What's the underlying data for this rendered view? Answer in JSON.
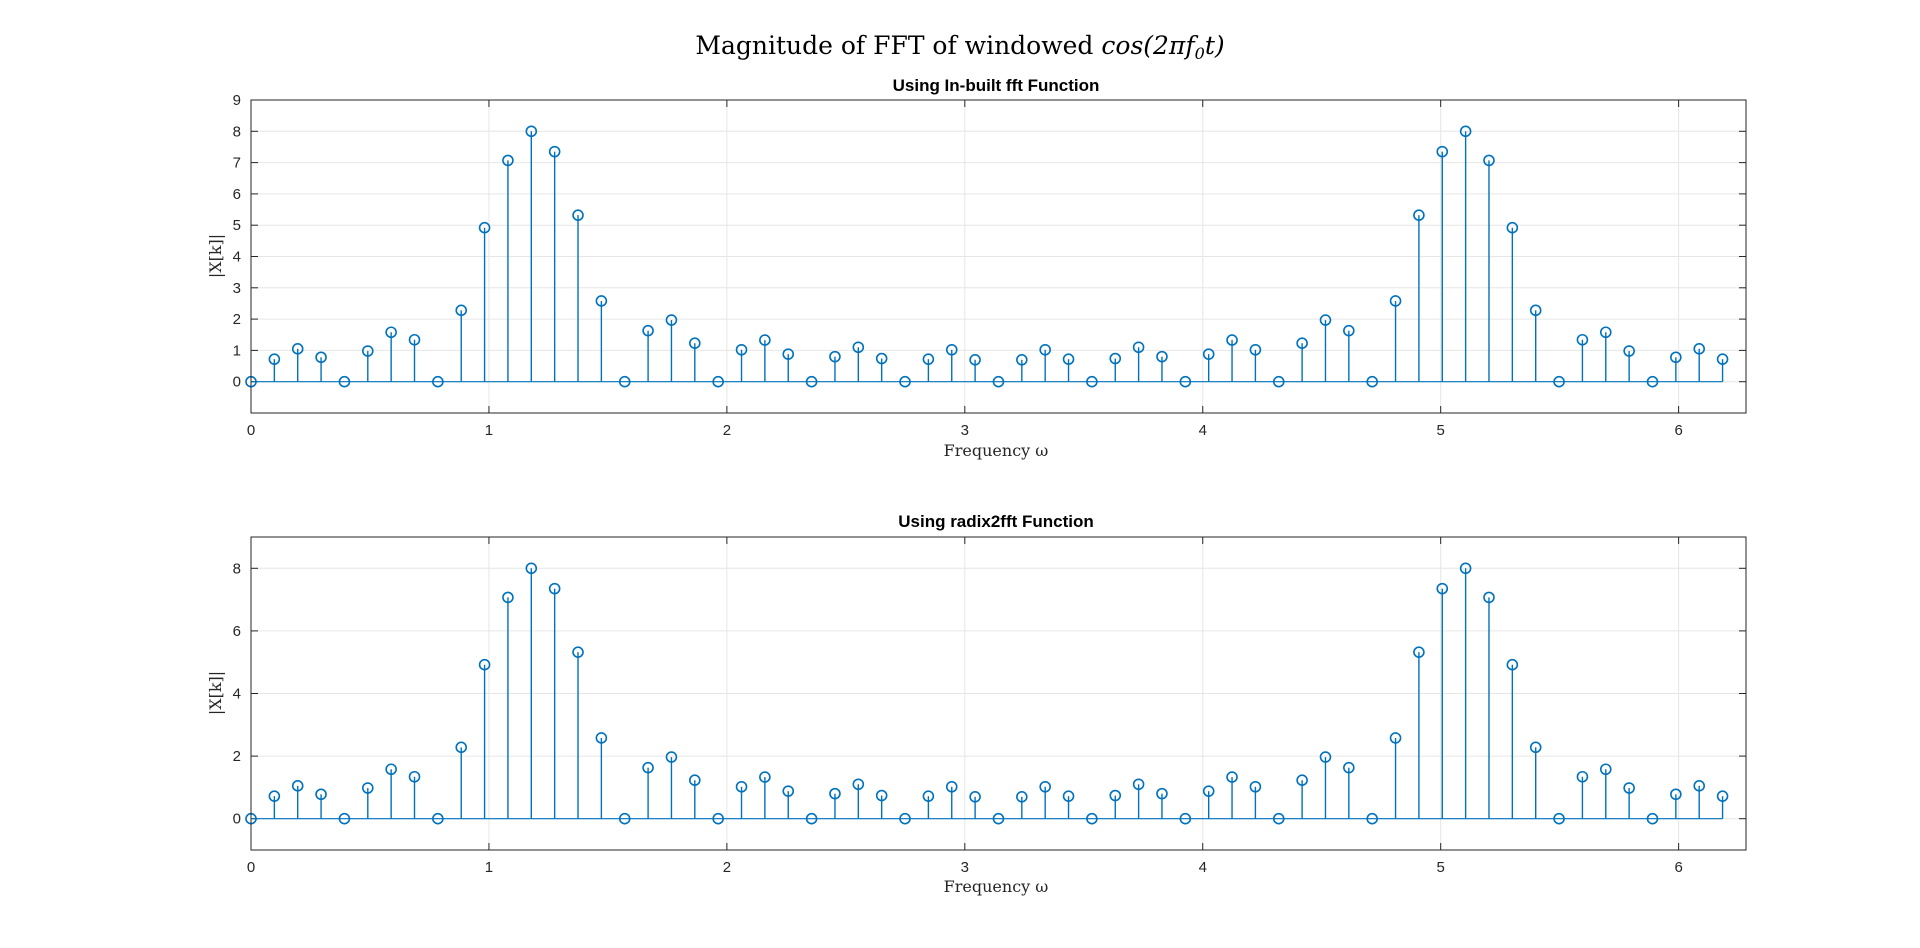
{
  "figure": {
    "title_prefix": "Magnitude of FFT of windowed ",
    "title_math": "cos(2πf",
    "title_sub": "0",
    "title_math_end": "t)"
  },
  "colors": {
    "stem": "#0072BD",
    "grid": "#e6e6e6",
    "axis": "#262626"
  },
  "chart_data": [
    {
      "type": "stem",
      "title": "Using In-built fft Function",
      "xlabel": "Frequency ω",
      "ylabel": "|X[k]|",
      "xlim": [
        0,
        6.2832
      ],
      "ylim": [
        -1,
        9
      ],
      "xticks": [
        0,
        1,
        2,
        3,
        4,
        5,
        6
      ],
      "yticks": [
        0,
        1,
        2,
        3,
        4,
        5,
        6,
        7,
        8,
        9
      ],
      "grid": true,
      "x_step": 0.09817,
      "values": [
        0,
        0.72,
        1.05,
        0.78,
        0,
        0.98,
        1.58,
        1.34,
        0,
        2.28,
        4.92,
        7.07,
        8.0,
        7.35,
        5.32,
        2.58,
        0,
        1.63,
        1.97,
        1.23,
        0,
        1.02,
        1.33,
        0.88,
        0,
        0.8,
        1.1,
        0.74,
        0,
        0.72,
        1.02,
        0.7,
        0,
        0.7,
        1.02,
        0.72,
        0,
        0.74,
        1.1,
        0.8,
        0,
        0.88,
        1.33,
        1.02,
        0,
        1.23,
        1.97,
        1.63,
        0,
        2.58,
        5.32,
        7.35,
        8.0,
        7.07,
        4.92,
        2.28,
        0,
        1.34,
        1.58,
        0.98,
        0,
        0.78,
        1.05,
        0.72
      ]
    },
    {
      "type": "stem",
      "title": "Using radix2fft Function",
      "xlabel": "Frequency ω",
      "ylabel": "|X[k]|",
      "xlim": [
        0,
        6.2832
      ],
      "ylim": [
        -1,
        9
      ],
      "xticks": [
        0,
        1,
        2,
        3,
        4,
        5,
        6
      ],
      "yticks": [
        0,
        2,
        4,
        6,
        8
      ],
      "grid": true,
      "x_step": 0.09817,
      "values": [
        0,
        0.72,
        1.05,
        0.78,
        0,
        0.98,
        1.58,
        1.34,
        0,
        2.28,
        4.92,
        7.07,
        8.0,
        7.35,
        5.32,
        2.58,
        0,
        1.63,
        1.97,
        1.23,
        0,
        1.02,
        1.33,
        0.88,
        0,
        0.8,
        1.1,
        0.74,
        0,
        0.72,
        1.02,
        0.7,
        0,
        0.7,
        1.02,
        0.72,
        0,
        0.74,
        1.1,
        0.8,
        0,
        0.88,
        1.33,
        1.02,
        0,
        1.23,
        1.97,
        1.63,
        0,
        2.58,
        5.32,
        7.35,
        8.0,
        7.07,
        4.92,
        2.28,
        0,
        1.34,
        1.58,
        0.98,
        0,
        0.78,
        1.05,
        0.72
      ]
    }
  ]
}
